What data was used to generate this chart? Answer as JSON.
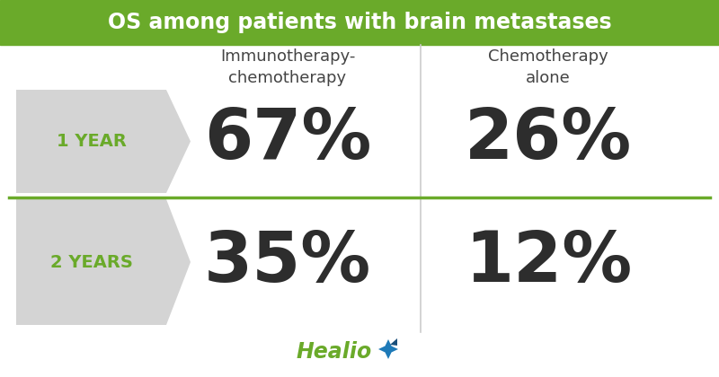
{
  "title": "OS among patients with brain metastases",
  "title_bg_color": "#6aaa2a",
  "title_text_color": "#ffffff",
  "bg_color": "#ffffff",
  "col1_header": "Immunotherapy-\nchemotherapy",
  "col2_header": "Chemotherapy\nalone",
  "row1_label": "1 YEAR",
  "row2_label": "2 YEARS",
  "row1_val1": "67%",
  "row1_val2": "26%",
  "row2_val1": "35%",
  "row2_val2": "12%",
  "label_color": "#6aaa2a",
  "value_color": "#2d2d2d",
  "header_color": "#444444",
  "divider_color": "#6aaa2a",
  "vert_divider_color": "#cccccc",
  "arrow_bg_color": "#d4d4d4",
  "healio_green": "#6aaa2a",
  "healio_blue": "#1e7ab8",
  "healio_dark_blue": "#1a4f7a",
  "title_fontsize": 17,
  "header_fontsize": 13,
  "label_fontsize": 14,
  "value_fontsize": 56
}
